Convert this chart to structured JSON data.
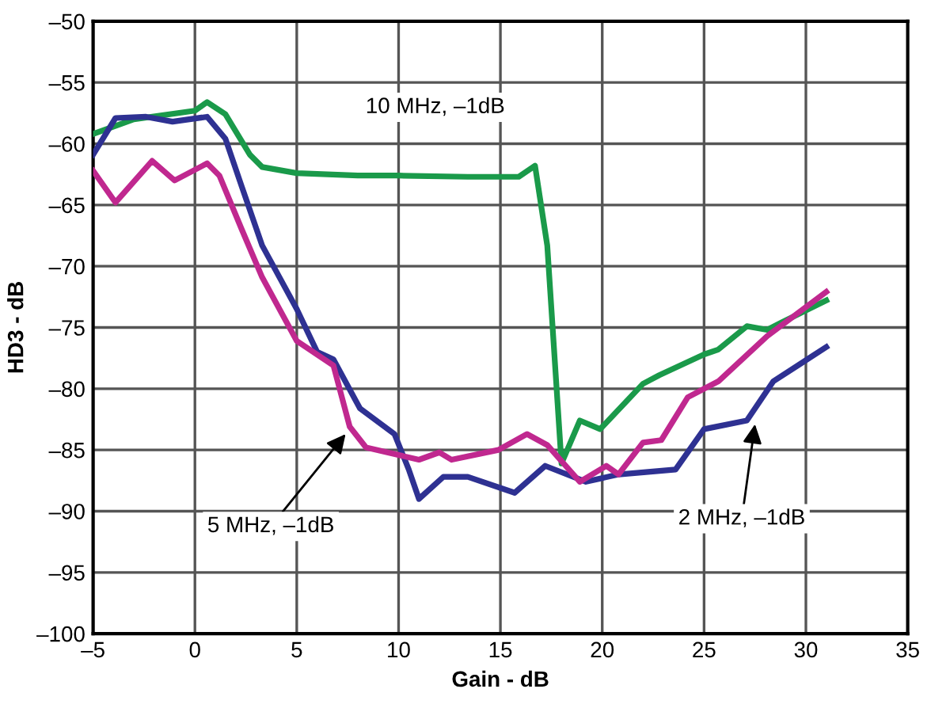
{
  "chart_data": {
    "type": "line",
    "xlabel": "Gain - dB",
    "ylabel": "HD3 - dB",
    "xlim": [
      -5,
      35
    ],
    "ylim": [
      -100,
      -50
    ],
    "xticks": [
      {
        "value": -5,
        "label": "–5"
      },
      0,
      5,
      10,
      15,
      20,
      25,
      30,
      35
    ],
    "yticks": [
      {
        "value": -100,
        "label": "–100"
      },
      {
        "value": -95,
        "label": "–95"
      },
      {
        "value": -90,
        "label": "–90"
      },
      {
        "value": -85,
        "label": "–85"
      },
      {
        "value": -80,
        "label": "–80"
      },
      {
        "value": -75,
        "label": "–75"
      },
      {
        "value": -70,
        "label": "–70"
      },
      {
        "value": -65,
        "label": "–65"
      },
      {
        "value": -60,
        "label": "–60"
      },
      {
        "value": -55,
        "label": "–55"
      },
      {
        "value": -50,
        "label": "–50"
      }
    ],
    "grid": true,
    "marker": "none",
    "line_style": "solid",
    "series": [
      {
        "color": "#1a9a4a",
        "x": [
          -5,
          -3,
          0,
          0.6,
          1.5,
          2.7,
          3.3,
          5,
          8,
          10,
          13.4,
          15.9,
          16.7,
          17.3,
          18.0,
          18.9,
          19.9,
          22.0,
          22.8,
          25.0,
          25.7,
          27.1,
          28.1,
          28.8,
          31.0
        ],
        "values": [
          -59.2,
          -58.0,
          -57.3,
          -56.6,
          -57.6,
          -60.9,
          -61.9,
          -62.4,
          -62.6,
          -62.6,
          -62.7,
          -62.7,
          -61.8,
          -68.3,
          -86.1,
          -82.6,
          -83.3,
          -79.6,
          -78.9,
          -77.2,
          -76.8,
          -74.9,
          -75.2,
          -74.6,
          -72.8
        ]
      },
      {
        "color": "#2e3192",
        "x": [
          -5,
          -3.9,
          -2.4,
          -1.1,
          0.6,
          1.5,
          2.3,
          3.3,
          5.0,
          6.0,
          6.8,
          8.1,
          9.8,
          10.5,
          11.0,
          12.2,
          13.4,
          15.7,
          17.2,
          19.2,
          20.8,
          23.6,
          25.0,
          27.1,
          28.4,
          31.0
        ],
        "values": [
          -60.9,
          -57.9,
          -57.8,
          -58.2,
          -57.8,
          -59.6,
          -63.5,
          -68.3,
          -73.5,
          -77.0,
          -77.6,
          -81.6,
          -83.7,
          -86.6,
          -89.0,
          -87.2,
          -87.2,
          -88.5,
          -86.3,
          -87.6,
          -87.0,
          -86.6,
          -83.3,
          -82.6,
          -79.4,
          -76.6
        ]
      },
      {
        "color": "#c0288f",
        "x": [
          -5,
          -3.9,
          -2.1,
          -1.0,
          0.6,
          1.2,
          2.3,
          3.3,
          5.0,
          6.8,
          7.6,
          8.4,
          11.0,
          12.0,
          12.6,
          14.9,
          16.3,
          17.3,
          18.9,
          20.2,
          20.8,
          22.0,
          22.9,
          24.2,
          25.7,
          28.1,
          31.0
        ],
        "values": [
          -62.2,
          -64.8,
          -61.4,
          -63.0,
          -61.6,
          -62.6,
          -67.0,
          -70.9,
          -76.1,
          -78.1,
          -83.1,
          -84.8,
          -85.8,
          -85.2,
          -85.8,
          -85.0,
          -83.7,
          -84.6,
          -87.6,
          -86.3,
          -87.0,
          -84.4,
          -84.2,
          -80.7,
          -79.4,
          -75.7,
          -72.1
        ]
      }
    ],
    "annotations": [
      {
        "text": "10 MHz, –1dB",
        "x": 11.8,
        "y": -62.6
      },
      {
        "text": "5 MHz, –1dB",
        "x": 7.4,
        "y": -83.7
      },
      {
        "text": "2 MHz, –1dB",
        "x": 27.5,
        "y": -82.9
      }
    ]
  }
}
